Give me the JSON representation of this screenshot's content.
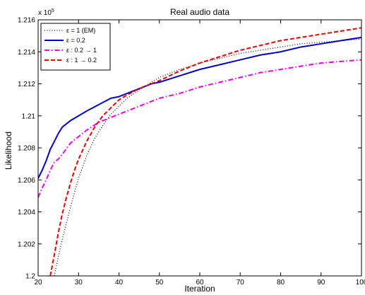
{
  "chart_data": {
    "type": "line",
    "title": "Real audio data",
    "xlabel": "Iteration",
    "ylabel": "Likelihood",
    "y_scale_label": "x 10^5",
    "y_scale_base": "x 10",
    "y_scale_exp": "5",
    "xlim": [
      20,
      100
    ],
    "ylim": [
      1.2,
      1.216
    ],
    "xticks": [
      20,
      30,
      40,
      50,
      60,
      70,
      80,
      90,
      100
    ],
    "yticks": [
      1.2,
      1.202,
      1.204,
      1.206,
      1.208,
      1.21,
      1.212,
      1.214,
      1.216
    ],
    "ytick_labels": [
      "1.2",
      "1.202",
      "1.204",
      "1.206",
      "1.208",
      "1.21",
      "1.212",
      "1.214",
      "1.216"
    ],
    "grid": false,
    "legend_position": "top-left",
    "series": [
      {
        "name": "ε = 1 (EM)",
        "color": "#000000",
        "style": "dotted",
        "x": [
          24,
          25,
          26,
          27,
          28,
          29,
          30,
          32,
          34,
          36,
          38,
          40,
          42,
          45,
          48,
          50,
          55,
          60,
          65,
          70,
          75,
          80,
          85,
          90,
          95,
          100
        ],
        "values": [
          1.2,
          1.2012,
          1.2023,
          1.2033,
          1.2043,
          1.2052,
          1.2061,
          1.2075,
          1.2086,
          1.2094,
          1.2101,
          1.2106,
          1.2111,
          1.2116,
          1.2121,
          1.2124,
          1.2129,
          1.2133,
          1.2136,
          1.2139,
          1.2141,
          1.2143,
          1.2145,
          1.2146,
          1.2147,
          1.2148
        ]
      },
      {
        "name": "ε = 0.2",
        "color": "#0000cc",
        "style": "solid",
        "x": [
          20,
          21,
          22,
          23,
          24,
          25,
          26,
          28,
          30,
          32,
          35,
          38,
          40,
          42,
          45,
          48,
          50,
          55,
          60,
          65,
          70,
          75,
          80,
          85,
          90,
          95,
          100
        ],
        "values": [
          1.2061,
          1.2066,
          1.2072,
          1.2079,
          1.2084,
          1.2089,
          1.2093,
          1.2097,
          1.21,
          1.2103,
          1.2107,
          1.2111,
          1.2112,
          1.2114,
          1.2117,
          1.212,
          1.2121,
          1.2125,
          1.2129,
          1.2132,
          1.2135,
          1.2138,
          1.214,
          1.2143,
          1.2145,
          1.2147,
          1.2149
        ]
      },
      {
        "name": "ε : 0.2 → 1",
        "color": "#ee00ee",
        "style": "dashdot",
        "x": [
          20,
          21,
          22,
          23,
          24,
          25,
          26,
          28,
          30,
          32,
          35,
          38,
          40,
          42,
          45,
          48,
          50,
          55,
          60,
          65,
          70,
          75,
          80,
          85,
          90,
          95,
          100
        ],
        "values": [
          1.2049,
          1.2055,
          1.206,
          1.2066,
          1.2071,
          1.2073,
          1.2076,
          1.2083,
          1.2087,
          1.2091,
          1.2096,
          1.2099,
          1.2101,
          1.2103,
          1.2106,
          1.2109,
          1.2111,
          1.2114,
          1.2118,
          1.2121,
          1.2124,
          1.2127,
          1.2129,
          1.2131,
          1.2133,
          1.2134,
          1.2135
        ]
      },
      {
        "name": "ε : 1 → 0.2",
        "color": "#ee0000",
        "style": "dashed",
        "x": [
          23,
          24,
          25,
          26,
          27,
          28,
          29,
          30,
          32,
          34,
          36,
          38,
          40,
          42,
          45,
          48,
          50,
          55,
          60,
          65,
          70,
          75,
          80,
          85,
          90,
          95,
          100
        ],
        "values": [
          1.2,
          1.2013,
          1.2027,
          1.2039,
          1.2049,
          1.2058,
          1.2066,
          1.2073,
          1.2084,
          1.2093,
          1.21,
          1.2105,
          1.211,
          1.2113,
          1.2117,
          1.212,
          1.2122,
          1.2128,
          1.2133,
          1.2137,
          1.2141,
          1.2144,
          1.2147,
          1.2149,
          1.2151,
          1.2153,
          1.2155
        ]
      }
    ]
  }
}
